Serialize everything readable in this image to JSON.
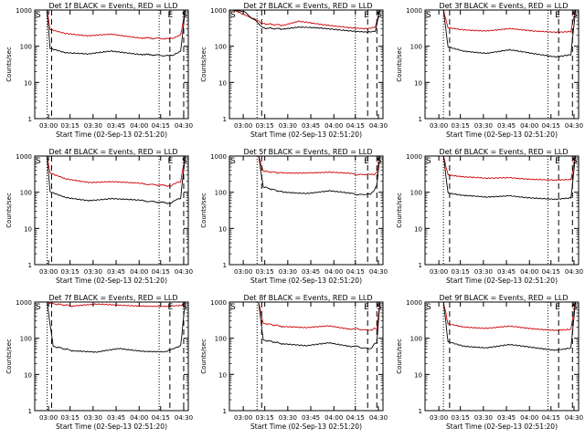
{
  "chart_data": [
    {
      "type": "line",
      "title": "Det 1f BLACK = Events, RED = LLD",
      "xlabel": "Start Time (02-Sep-13 02:51:20)",
      "ylabel": "Counts/sec",
      "ylog": true,
      "ylim": [
        1,
        1000
      ],
      "yticks": [
        "1",
        "10",
        "100",
        "1000"
      ],
      "xticks": [
        "03:00",
        "03:15",
        "03:30",
        "03:45",
        "04:00",
        "04:15",
        "04:30"
      ],
      "xtick_positions": [
        0.02,
        0.09,
        0.17,
        0.25,
        0.33,
        0.42,
        0.5
      ],
      "markers": {
        "S_left": "S",
        "E_right": "E",
        "S_right": "S"
      },
      "markers_pos": {
        "S_left": 0.0,
        "E_right": 0.86,
        "S_right": 0.97
      },
      "vlines": {
        "dotted": [
          0.08,
          0.81
        ],
        "dashed": [
          0.11,
          0.88,
          0.97
        ]
      },
      "series": [
        {
          "name": "LLD",
          "color": "#cc0000",
          "x": [
            0.08,
            0.1,
            0.2,
            0.35,
            0.5,
            0.7,
            0.88,
            0.95,
            0.98
          ],
          "y": [
            1000,
            300,
            230,
            190,
            210,
            170,
            160,
            200,
            1000
          ]
        },
        {
          "name": "Events",
          "color": "#000000",
          "x": [
            0.08,
            0.1,
            0.2,
            0.35,
            0.5,
            0.7,
            0.88,
            0.95,
            0.98
          ],
          "y": [
            1000,
            90,
            68,
            60,
            72,
            60,
            54,
            70,
            1000
          ]
        }
      ]
    },
    {
      "type": "line",
      "title": "Det 2f BLACK = Events, RED = LLD",
      "xlabel": "Start Time (02-Sep-13 02:51:20)",
      "ylabel": "Counts/sec",
      "ylog": true,
      "ylim": [
        1,
        1000
      ],
      "yticks": [
        "1",
        "10",
        "100",
        "1000"
      ],
      "xticks": [
        "03:00",
        "03:15",
        "03:30",
        "03:45",
        "04:00",
        "04:15",
        "04:30"
      ],
      "xtick_positions": [
        0.08,
        0.23,
        0.38,
        0.53,
        0.68,
        0.83,
        0.98
      ],
      "markers": {
        "S_left": "S",
        "E_right": "E",
        "S_right": "S"
      },
      "markers_pos": {
        "S_left": 0.0,
        "E_right": 0.87,
        "S_right": 0.97
      },
      "vlines": {
        "dotted": [
          0.18,
          0.82
        ],
        "dashed": [
          0.21,
          0.9,
          0.96
        ]
      },
      "series": [
        {
          "name": "LLD",
          "color": "#cc0000",
          "x": [
            0.0,
            0.05,
            0.15,
            0.22,
            0.35,
            0.45,
            0.6,
            0.8,
            0.9,
            0.95,
            0.98
          ],
          "y": [
            1000,
            900,
            600,
            420,
            380,
            480,
            390,
            330,
            310,
            340,
            1000
          ]
        },
        {
          "name": "Events",
          "color": "#000000",
          "x": [
            0.0,
            0.1,
            0.22,
            0.35,
            0.45,
            0.6,
            0.8,
            0.9,
            0.95,
            0.98
          ],
          "y": [
            1000,
            900,
            320,
            300,
            330,
            310,
            270,
            250,
            260,
            1000
          ]
        }
      ]
    },
    {
      "type": "line",
      "title": "Det 3f BLACK = Events, RED = LLD",
      "xlabel": "Start Time (02-Sep-13 02:51:20)",
      "ylabel": "Counts/sec",
      "ylog": true,
      "ylim": [
        1,
        1000
      ],
      "yticks": [
        "1",
        "10",
        "100",
        "1000"
      ],
      "xticks": [
        "03:00",
        "03:15",
        "03:30",
        "03:45",
        "04:00",
        "04:15",
        "04:30"
      ],
      "xtick_positions": [
        0.02,
        0.1,
        0.2,
        0.3,
        0.4,
        0.5,
        0.6
      ],
      "markers": {
        "S_left": "S",
        "E_right": "E",
        "S_right": "S"
      },
      "markers_pos": {
        "S_left": 0.0,
        "E_right": 0.84,
        "S_right": 0.97
      },
      "vlines": {
        "dotted": [
          0.12,
          0.8
        ],
        "dashed": [
          0.16,
          0.87,
          0.96
        ]
      },
      "series": [
        {
          "name": "LLD",
          "color": "#cc0000",
          "x": [
            0.12,
            0.15,
            0.25,
            0.4,
            0.55,
            0.7,
            0.85,
            0.95,
            0.98
          ],
          "y": [
            1000,
            320,
            290,
            270,
            300,
            260,
            250,
            260,
            1000
          ]
        },
        {
          "name": "Events",
          "color": "#000000",
          "x": [
            0.12,
            0.15,
            0.25,
            0.4,
            0.55,
            0.7,
            0.85,
            0.95,
            0.98
          ],
          "y": [
            1000,
            95,
            75,
            65,
            78,
            62,
            52,
            60,
            1000
          ]
        }
      ]
    },
    {
      "type": "line",
      "title": "Det 4f BLACK = Events, RED = LLD",
      "xlabel": "Start Time (02-Sep-13 02:51:20)",
      "ylabel": "Counts/sec",
      "ylog": true,
      "ylim": [
        1,
        1000
      ],
      "yticks": [
        "1",
        "10",
        "100",
        "1000"
      ],
      "xticks": [
        "03:00",
        "03:15",
        "03:30",
        "03:45",
        "04:00",
        "04:15",
        "04:30"
      ],
      "xtick_positions": [
        0.02,
        0.09,
        0.17,
        0.25,
        0.33,
        0.42,
        0.5
      ],
      "markers": {
        "S_left": "S",
        "E_right": "E",
        "S_right": "S"
      },
      "markers_pos": {
        "S_left": 0.0,
        "E_right": 0.86,
        "S_right": 0.97
      },
      "vlines": {
        "dotted": [
          0.08,
          0.81
        ],
        "dashed": [
          0.11,
          0.88,
          0.97
        ]
      },
      "series": [
        {
          "name": "LLD",
          "color": "#cc0000",
          "x": [
            0.08,
            0.1,
            0.2,
            0.35,
            0.5,
            0.7,
            0.88,
            0.95,
            0.98
          ],
          "y": [
            1000,
            330,
            230,
            190,
            200,
            170,
            150,
            200,
            1000
          ]
        },
        {
          "name": "Events",
          "color": "#000000",
          "x": [
            0.08,
            0.1,
            0.2,
            0.35,
            0.5,
            0.7,
            0.88,
            0.95,
            0.98
          ],
          "y": [
            1000,
            100,
            70,
            60,
            68,
            58,
            50,
            70,
            1000
          ]
        }
      ]
    },
    {
      "type": "line",
      "title": "Det 5f BLACK = Events, RED = LLD",
      "xlabel": "Start Time (02-Sep-13 02:51:20)",
      "ylabel": "Counts/sec",
      "ylog": true,
      "ylim": [
        1,
        1000
      ],
      "yticks": [
        "1",
        "10",
        "100",
        "1000"
      ],
      "xticks": [
        "03:00",
        "03:15",
        "03:30",
        "03:45",
        "04:00",
        "04:15",
        "04:30"
      ],
      "xtick_positions": [
        0.08,
        0.23,
        0.38,
        0.53,
        0.68,
        0.83,
        0.98
      ],
      "markers": {
        "S_left": "S",
        "E_right": "E",
        "S_right": "S"
      },
      "markers_pos": {
        "S_left": 0.0,
        "E_right": 0.87,
        "S_right": 0.97
      },
      "vlines": {
        "dotted": [
          0.18,
          0.82
        ],
        "dashed": [
          0.21,
          0.9,
          0.96
        ]
      },
      "series": [
        {
          "name": "LLD",
          "color": "#cc0000",
          "x": [
            0.19,
            0.22,
            0.35,
            0.5,
            0.65,
            0.8,
            0.92,
            0.96,
            0.98
          ],
          "y": [
            1000,
            380,
            340,
            350,
            360,
            320,
            300,
            330,
            1000
          ]
        },
        {
          "name": "Events",
          "color": "#000000",
          "x": [
            0.19,
            0.22,
            0.35,
            0.5,
            0.65,
            0.8,
            0.92,
            0.96,
            0.98
          ],
          "y": [
            1000,
            140,
            100,
            95,
            110,
            90,
            85,
            150,
            1000
          ]
        }
      ]
    },
    {
      "type": "line",
      "title": "Det 6f BLACK = Events, RED = LLD",
      "xlabel": "Start Time (02-Sep-13 02:51:20)",
      "ylabel": "Counts/sec",
      "ylog": true,
      "ylim": [
        1,
        1000
      ],
      "yticks": [
        "1",
        "10",
        "100",
        "1000"
      ],
      "xticks": [
        "03:00",
        "03:15",
        "03:30",
        "03:45",
        "04:00",
        "04:15",
        "04:30"
      ],
      "xtick_positions": [
        0.02,
        0.1,
        0.2,
        0.3,
        0.4,
        0.5,
        0.6
      ],
      "markers": {
        "S_left": "S",
        "E_right": "E",
        "S_right": "S"
      },
      "markers_pos": {
        "S_left": 0.0,
        "E_right": 0.84,
        "S_right": 0.97
      },
      "vlines": {
        "dotted": [
          0.12,
          0.8
        ],
        "dashed": [
          0.16,
          0.87,
          0.96
        ]
      },
      "series": [
        {
          "name": "LLD",
          "color": "#cc0000",
          "x": [
            0.12,
            0.15,
            0.25,
            0.4,
            0.55,
            0.7,
            0.85,
            0.95,
            0.98
          ],
          "y": [
            1000,
            300,
            260,
            240,
            260,
            230,
            210,
            220,
            1000
          ]
        },
        {
          "name": "Events",
          "color": "#000000",
          "x": [
            0.12,
            0.15,
            0.25,
            0.4,
            0.55,
            0.7,
            0.85,
            0.95,
            0.98
          ],
          "y": [
            1000,
            95,
            80,
            72,
            82,
            70,
            62,
            68,
            1000
          ]
        }
      ]
    },
    {
      "type": "line",
      "title": "Det 7f BLACK = Events, RED = LLD",
      "xlabel": "Start Time (02-Sep-13 02:51:20)",
      "ylabel": "Counts/sec",
      "ylog": true,
      "ylim": [
        1,
        1000
      ],
      "yticks": [
        "1",
        "10",
        "100",
        "1000"
      ],
      "xticks": [
        "03:00",
        "03:15",
        "03:30",
        "03:45",
        "04:00",
        "04:15",
        "04:30"
      ],
      "xtick_positions": [
        0.02,
        0.09,
        0.17,
        0.25,
        0.33,
        0.42,
        0.5
      ],
      "markers": {
        "S_left": "S",
        "E_right": "E",
        "S_right": "S"
      },
      "markers_pos": {
        "S_left": 0.0,
        "E_right": 0.86,
        "S_right": 0.97
      },
      "vlines": {
        "dotted": [
          0.08,
          0.81
        ],
        "dashed": [
          0.11,
          0.88,
          0.97
        ]
      },
      "series": [
        {
          "name": "LLD",
          "color": "#cc0000",
          "x": [
            0.08,
            0.12,
            0.25,
            0.4,
            0.55,
            0.7,
            0.85,
            0.95,
            0.98
          ],
          "y": [
            1000,
            900,
            780,
            850,
            820,
            800,
            760,
            780,
            1000
          ]
        },
        {
          "name": "Events",
          "color": "#000000",
          "x": [
            0.08,
            0.12,
            0.25,
            0.4,
            0.55,
            0.7,
            0.85,
            0.95,
            0.98
          ],
          "y": [
            1000,
            60,
            45,
            40,
            52,
            45,
            42,
            60,
            1000
          ]
        }
      ]
    },
    {
      "type": "line",
      "title": "Det 8f BLACK = Events, RED = LLD",
      "xlabel": "Start Time (02-Sep-13 02:51:20)",
      "ylabel": "Counts/sec",
      "ylog": true,
      "ylim": [
        1,
        1000
      ],
      "yticks": [
        "1",
        "10",
        "100",
        "1000"
      ],
      "xticks": [
        "03:00",
        "03:15",
        "03:30",
        "03:45",
        "04:00",
        "04:15",
        "04:30"
      ],
      "xtick_positions": [
        0.08,
        0.23,
        0.38,
        0.53,
        0.68,
        0.83,
        0.98
      ],
      "markers": {
        "S_left": "S",
        "E_right": "E",
        "S_right": "S"
      },
      "markers_pos": {
        "S_left": 0.0,
        "E_right": 0.87,
        "S_right": 0.97
      },
      "vlines": {
        "dotted": [
          0.18,
          0.82
        ],
        "dashed": [
          0.21,
          0.9,
          0.96
        ]
      },
      "series": [
        {
          "name": "LLD",
          "color": "#cc0000",
          "x": [
            0.19,
            0.22,
            0.35,
            0.5,
            0.65,
            0.8,
            0.92,
            0.96,
            0.98
          ],
          "y": [
            1000,
            260,
            210,
            190,
            220,
            180,
            170,
            190,
            1000
          ]
        },
        {
          "name": "Events",
          "color": "#000000",
          "x": [
            0.19,
            0.22,
            0.35,
            0.5,
            0.65,
            0.8,
            0.92,
            0.96,
            0.98
          ],
          "y": [
            1000,
            90,
            70,
            60,
            75,
            60,
            52,
            80,
            1000
          ]
        }
      ]
    },
    {
      "type": "line",
      "title": "Det 9f BLACK = Events, RED = LLD",
      "xlabel": "Start Time (02-Sep-13 02:51:20)",
      "ylabel": "Counts/sec",
      "ylog": true,
      "ylim": [
        1,
        1000
      ],
      "yticks": [
        "1",
        "10",
        "100",
        "1000"
      ],
      "xticks": [
        "03:00",
        "03:15",
        "03:30",
        "03:45",
        "04:00",
        "04:15",
        "04:30"
      ],
      "xtick_positions": [
        0.02,
        0.1,
        0.2,
        0.3,
        0.4,
        0.5,
        0.6
      ],
      "markers": {
        "S_left": "S",
        "E_right": "E",
        "S_right": "S"
      },
      "markers_pos": {
        "S_left": 0.0,
        "E_right": 0.84,
        "S_right": 0.97
      },
      "vlines": {
        "dotted": [
          0.12,
          0.8
        ],
        "dashed": [
          0.16,
          0.87,
          0.96
        ]
      },
      "series": [
        {
          "name": "LLD",
          "color": "#cc0000",
          "x": [
            0.12,
            0.15,
            0.25,
            0.4,
            0.55,
            0.7,
            0.85,
            0.95,
            0.98
          ],
          "y": [
            1000,
            250,
            210,
            190,
            210,
            180,
            170,
            180,
            1000
          ]
        },
        {
          "name": "Events",
          "color": "#000000",
          "x": [
            0.12,
            0.15,
            0.25,
            0.4,
            0.55,
            0.7,
            0.85,
            0.95,
            0.98
          ],
          "y": [
            1000,
            80,
            62,
            55,
            65,
            55,
            48,
            55,
            1000
          ]
        }
      ]
    }
  ]
}
